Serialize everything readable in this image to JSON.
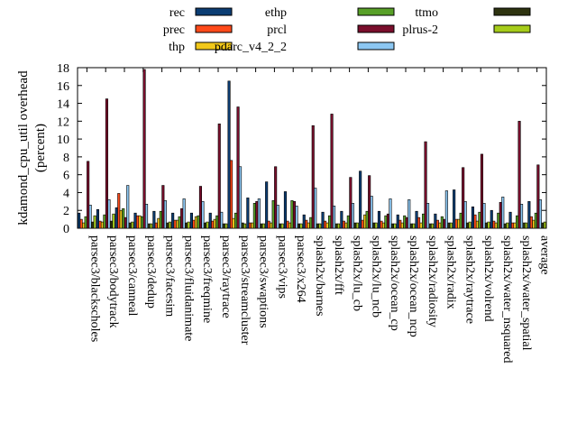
{
  "chart_data": {
    "type": "bar",
    "title": "",
    "xlabel": "",
    "ylabel": [
      "kdamond_cpu_util overhead",
      "(percent)"
    ],
    "ylim": [
      0,
      18
    ],
    "yticks": [
      0,
      2,
      4,
      6,
      8,
      10,
      12,
      14,
      16,
      18
    ],
    "grid": false,
    "legend_position": "top",
    "categories": [
      "parsec3/blackscholes",
      "parsec3/bodytrack",
      "parsec3/canneal",
      "parsec3/dedup",
      "parsec3/facesim",
      "parsec3/fluidanimate",
      "parsec3/freqmine",
      "parsec3/raytrace",
      "parsec3/streamcluster",
      "parsec3/swaptions",
      "parsec3/vips",
      "parsec3/x264",
      "splash2x/barnes",
      "splash2x/fft",
      "splash2x/lu_cb",
      "splash2x/lu_ncb",
      "splash2x/ocean_cp",
      "splash2x/ocean_ncp",
      "splash2x/radiosity",
      "splash2x/radix",
      "splash2x/raytrace",
      "splash2x/volrend",
      "splash2x/water_nsquared",
      "splash2x/water_spatial",
      "average"
    ],
    "series": [
      {
        "name": "rec",
        "color": "#0b3d73",
        "values": [
          1.7,
          2.1,
          2.3,
          1.7,
          1.9,
          1.7,
          1.7,
          1.7,
          16.5,
          3.4,
          5.2,
          4.1,
          1.5,
          1.8,
          1.9,
          6.4,
          1.9,
          1.5,
          1.9,
          1.6,
          4.3,
          2.4,
          2.0,
          1.8,
          3.0
        ]
      },
      {
        "name": "prec",
        "color": "#ff4a1a",
        "values": [
          1.0,
          0.8,
          3.9,
          1.4,
          0.6,
          0.9,
          0.9,
          0.8,
          7.6,
          0.6,
          0.8,
          0.8,
          0.9,
          0.8,
          0.8,
          0.9,
          0.8,
          0.9,
          1.2,
          0.9,
          1.0,
          1.5,
          0.8,
          0.6,
          1.3
        ]
      },
      {
        "name": "thp",
        "color": "#f2c81a",
        "values": [
          0.6,
          0.7,
          2.0,
          1.4,
          1.1,
          0.9,
          1.3,
          1.0,
          1.1,
          0.6,
          0.6,
          0.6,
          0.6,
          0.6,
          0.6,
          1.5,
          0.6,
          0.6,
          0.6,
          0.6,
          1.0,
          0.8,
          0.6,
          0.6,
          0.9
        ]
      },
      {
        "name": "ethp",
        "color": "#58a028",
        "values": [
          1.3,
          1.5,
          2.2,
          1.3,
          1.9,
          1.3,
          1.4,
          1.4,
          1.7,
          2.8,
          3.1,
          3.1,
          1.2,
          1.4,
          1.4,
          1.9,
          1.4,
          1.4,
          1.6,
          1.3,
          1.7,
          1.8,
          1.7,
          1.4,
          1.7
        ]
      },
      {
        "name": "prcl",
        "color": "#7a0e2c",
        "values": [
          7.5,
          14.5,
          1.2,
          17.8,
          4.8,
          2.2,
          4.7,
          11.7,
          13.6,
          3.0,
          6.9,
          3.0,
          11.5,
          12.8,
          5.7,
          5.9,
          1.6,
          1.2,
          9.7,
          1.0,
          6.8,
          8.3,
          2.9,
          12.0,
          7.1
        ]
      },
      {
        "name": "pdarc_v4_2_2",
        "color": "#8cc7f2",
        "values": [
          2.6,
          3.2,
          4.8,
          2.7,
          3.1,
          3.3,
          3.0,
          1.8,
          6.9,
          3.3,
          2.6,
          2.5,
          4.5,
          2.5,
          2.8,
          3.6,
          3.3,
          3.2,
          2.8,
          4.2,
          3.0,
          2.8,
          3.5,
          2.7,
          3.2
        ]
      },
      {
        "name": "ttmo",
        "color": "#2e3310",
        "values": [
          0.7,
          0.8,
          0.6,
          0.5,
          0.6,
          0.6,
          0.6,
          0.5,
          0.6,
          0.5,
          0.5,
          0.5,
          0.5,
          0.5,
          0.6,
          0.6,
          0.5,
          0.5,
          0.5,
          0.6,
          0.6,
          0.6,
          0.5,
          0.6,
          0.6
        ]
      },
      {
        "name": "plrus-2",
        "color": "#a6cc1a",
        "values": [
          1.4,
          1.6,
          0.7,
          0.5,
          0.7,
          0.7,
          0.7,
          0.5,
          0.5,
          0.5,
          0.5,
          0.5,
          0.5,
          0.5,
          0.6,
          0.6,
          0.5,
          0.5,
          0.5,
          0.6,
          0.7,
          0.7,
          0.6,
          0.6,
          0.7
        ]
      }
    ]
  }
}
